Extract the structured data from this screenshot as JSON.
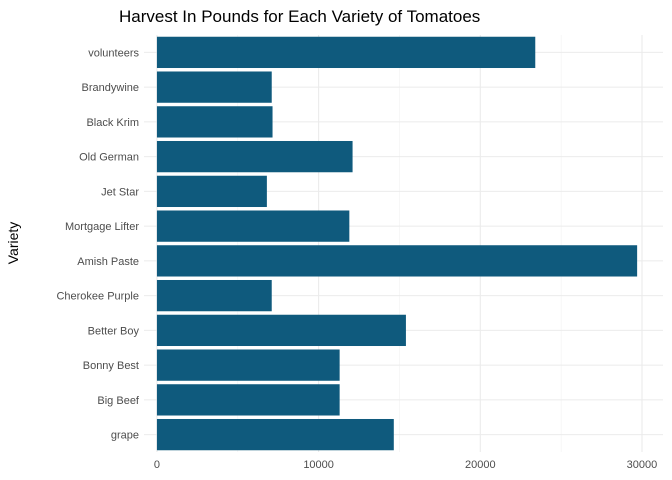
{
  "chart_data": {
    "type": "bar",
    "orientation": "horizontal",
    "title": "Harvest In Pounds for Each Variety of Tomatoes",
    "xlabel": "",
    "ylabel": "Variety",
    "categories": [
      "grape",
      "Big Beef",
      "Bonny Best",
      "Better Boy",
      "Cherokee Purple",
      "Amish Paste",
      "Mortgage Lifter",
      "Jet Star",
      "Old German",
      "Black Krim",
      "Brandywine",
      "volunteers"
    ],
    "values": [
      14650,
      11300,
      11300,
      15400,
      7100,
      29700,
      11900,
      6800,
      12100,
      7150,
      7100,
      23400
    ],
    "xlim": [
      -800,
      31300
    ],
    "xticks": [
      0,
      10000,
      20000,
      30000
    ],
    "xtick_labels": [
      "0",
      "10000",
      "20000",
      "30000"
    ],
    "bar_color": "#0f5a7d",
    "grid": true
  }
}
